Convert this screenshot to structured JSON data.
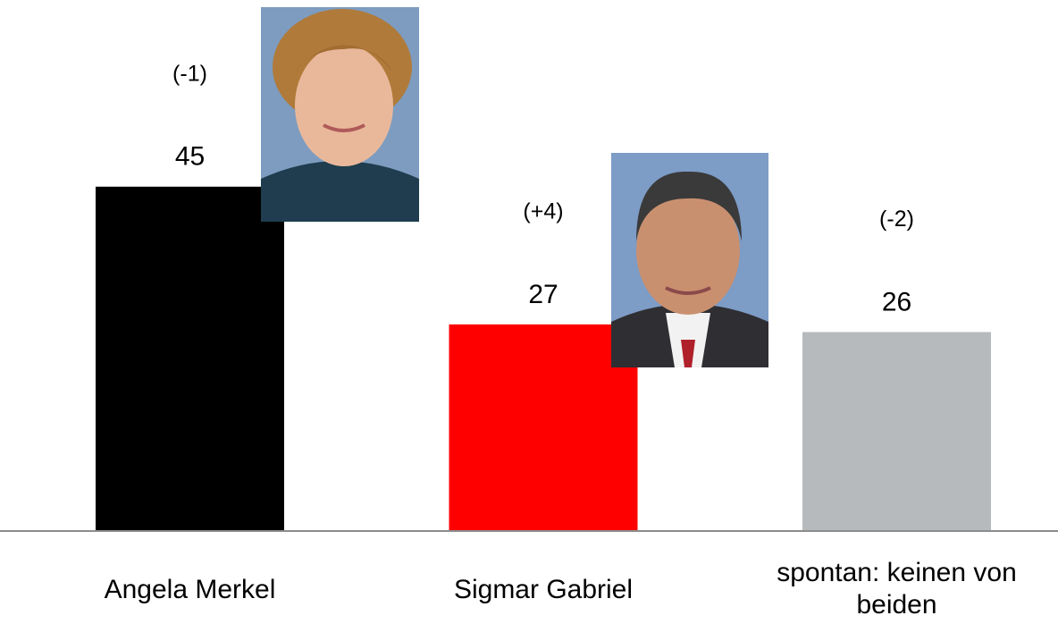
{
  "chart_data": {
    "type": "bar",
    "categories": [
      "Angela Merkel",
      "Sigmar Gabriel",
      "spontan: keinen von beiden"
    ],
    "values": [
      45,
      27,
      26
    ],
    "colors": [
      "#000000",
      "#ff0000",
      "#b6babd"
    ],
    "annotations": [
      "(-1)",
      "(+4)",
      "(-2)"
    ],
    "ylim": [
      0,
      50
    ]
  }
}
